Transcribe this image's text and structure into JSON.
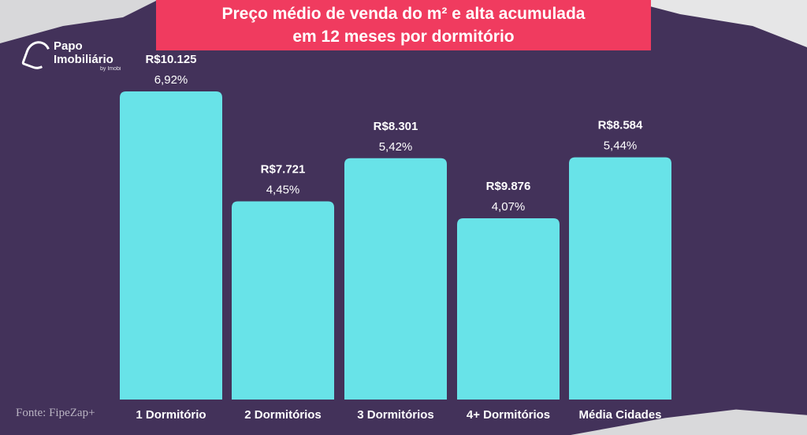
{
  "title_lines": [
    "Preço médio de venda do m² e alta acumulada",
    "em 12 meses por dormitório"
  ],
  "logo": {
    "name_line1": "Papo",
    "name_line2": "Imobiliário",
    "sub": "by Imobi"
  },
  "source": "Fonte: FipeZap+",
  "colors": {
    "background": "#43325a",
    "bar": "#68e3e8",
    "title_bg": "#f03b5f",
    "text": "#ffffff"
  },
  "chart_data": {
    "type": "bar",
    "title": "Preço médio de venda do m² e alta acumulada em 12 meses por dormitório",
    "categories": [
      "1 Dormitório",
      "2 Dormitórios",
      "3 Dormitórios",
      "4+ Dormitórios",
      "Média Cidades"
    ],
    "series": [
      {
        "values": [
          10125,
          7721,
          8301,
          9876,
          8584
        ],
        "labels": [
          "R$10.125",
          "R$7.721",
          "R$8.301",
          "R$9.876",
          "R$8.584"
        ]
      },
      {
        "values": [
          6.92,
          4.45,
          5.42,
          4.07,
          5.44
        ],
        "labels": [
          "6,92%",
          "4,45%",
          "5,42%",
          "4,07%",
          "5,44%"
        ]
      }
    ],
    "bar_height_encodes": "percent",
    "ylim": [
      0,
      7
    ],
    "grid": false,
    "xlabel": "",
    "ylabel": ""
  }
}
